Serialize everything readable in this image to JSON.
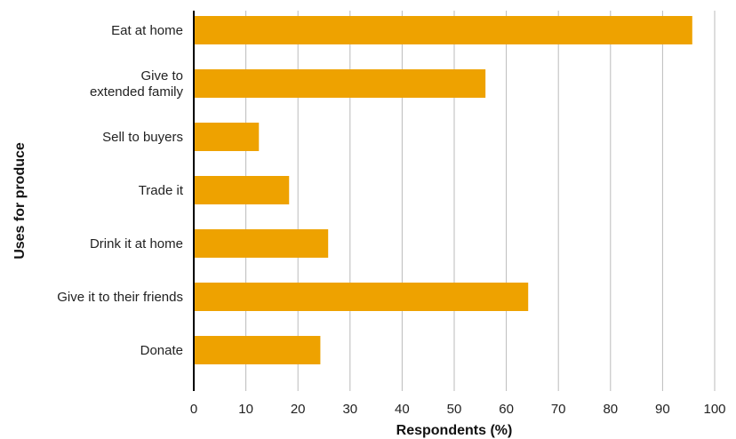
{
  "chart_data": {
    "type": "bar",
    "orientation": "horizontal",
    "categories": [
      [
        "Eat at home"
      ],
      [
        "Give to",
        "extended family"
      ],
      [
        "Sell to buyers"
      ],
      [
        "Trade it"
      ],
      [
        "Drink it at home"
      ],
      [
        "Give it to their friends"
      ],
      [
        "Donate"
      ]
    ],
    "values": [
      95.7,
      56,
      12.5,
      18.3,
      25.8,
      64.2,
      24.3
    ],
    "xlabel": "Respondents (%)",
    "ylabel": "Uses for produce",
    "xlim": [
      0,
      100
    ],
    "xticks": [
      "0",
      "10",
      "20",
      "30",
      "40",
      "50",
      "60",
      "70",
      "80",
      "90",
      "100"
    ],
    "grid": "vertical",
    "bar_color": "#eea200",
    "grid_color": "#bbbbbb",
    "axis_color": "#000000"
  }
}
